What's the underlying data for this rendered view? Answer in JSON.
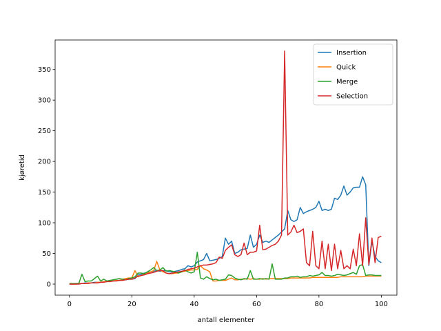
{
  "chart_data": {
    "type": "line",
    "title": "",
    "xlabel": "antall elementer",
    "ylabel": "kjøretid",
    "xlim": [
      -4.6,
      105
    ],
    "ylim": [
      -18,
      398
    ],
    "xticks": [
      0,
      20,
      40,
      60,
      80,
      100
    ],
    "yticks": [
      0,
      50,
      100,
      150,
      200,
      250,
      300,
      350
    ],
    "grid": false,
    "legend_position": "top-right",
    "x": [
      0,
      1,
      2,
      3,
      4,
      5,
      6,
      7,
      8,
      9,
      10,
      11,
      12,
      13,
      14,
      15,
      16,
      17,
      18,
      19,
      20,
      21,
      22,
      23,
      24,
      25,
      26,
      27,
      28,
      29,
      30,
      31,
      32,
      33,
      34,
      35,
      36,
      37,
      38,
      39,
      40,
      41,
      42,
      43,
      44,
      45,
      46,
      47,
      48,
      49,
      50,
      51,
      52,
      53,
      54,
      55,
      56,
      57,
      58,
      59,
      60,
      61,
      62,
      63,
      64,
      65,
      66,
      67,
      68,
      69,
      70,
      71,
      72,
      73,
      74,
      75,
      76,
      77,
      78,
      79,
      80,
      81,
      82,
      83,
      84,
      85,
      86,
      87,
      88,
      89,
      90,
      91,
      92,
      93,
      94,
      95,
      96,
      97,
      98,
      99,
      100
    ],
    "series": [
      {
        "name": "Insertion",
        "color": "#1f77b4",
        "values": [
          0,
          0,
          1,
          1,
          1,
          2,
          2,
          2,
          3,
          3,
          3,
          4,
          4,
          5,
          5,
          6,
          6,
          7,
          7,
          8,
          8,
          9,
          15,
          16,
          18,
          19,
          20,
          21,
          22,
          21,
          22,
          22,
          20,
          20,
          21,
          22,
          24,
          25,
          30,
          28,
          30,
          36,
          38,
          40,
          50,
          38,
          39,
          40,
          42,
          45,
          75,
          65,
          70,
          50,
          52,
          56,
          57,
          58,
          80,
          60,
          65,
          80,
          68,
          70,
          68,
          72,
          76,
          80,
          85,
          90,
          120,
          105,
          102,
          105,
          125,
          115,
          118,
          120,
          122,
          125,
          135,
          120,
          122,
          120,
          122,
          140,
          138,
          145,
          160,
          145,
          150,
          157,
          158,
          158,
          175,
          162,
          30,
          70,
          45,
          38,
          35
        ]
      },
      {
        "name": "Quick",
        "color": "#ff7f0e",
        "values": [
          0,
          0,
          0,
          1,
          1,
          1,
          2,
          2,
          2,
          3,
          3,
          4,
          4,
          5,
          5,
          6,
          6,
          8,
          9,
          10,
          10,
          22,
          12,
          14,
          16,
          18,
          20,
          22,
          37,
          23,
          20,
          18,
          17,
          17,
          18,
          18,
          20,
          21,
          22,
          23,
          23,
          24,
          30,
          25,
          23,
          20,
          5,
          5,
          6,
          6,
          6,
          8,
          10,
          7,
          7,
          8,
          8,
          9,
          8,
          9,
          8,
          8,
          9,
          8,
          9,
          9,
          9,
          9,
          9,
          9,
          9,
          10,
          10,
          10,
          10,
          10,
          10,
          10,
          11,
          11,
          11,
          11,
          11,
          11,
          11,
          11,
          11,
          12,
          12,
          12,
          12,
          12,
          12,
          12,
          12,
          13,
          13,
          13,
          13,
          13,
          13
        ]
      },
      {
        "name": "Merge",
        "color": "#2ca02c",
        "values": [
          1,
          1,
          1,
          1,
          16,
          4,
          5,
          5,
          9,
          13,
          5,
          8,
          5,
          6,
          7,
          8,
          9,
          8,
          7,
          9,
          10,
          12,
          18,
          18,
          17,
          20,
          23,
          27,
          22,
          23,
          27,
          21,
          22,
          21,
          20,
          18,
          20,
          23,
          20,
          18,
          20,
          52,
          10,
          8,
          12,
          9,
          7,
          8,
          6,
          7,
          8,
          15,
          14,
          10,
          8,
          7,
          9,
          8,
          22,
          8,
          8,
          9,
          8,
          9,
          8,
          33,
          8,
          8,
          8,
          10,
          10,
          12,
          12,
          13,
          11,
          12,
          12,
          14,
          13,
          14,
          15,
          19,
          14,
          14,
          13,
          14,
          16,
          15,
          14,
          15,
          17,
          19,
          16,
          30,
          32,
          14,
          15,
          15,
          14,
          14,
          14
        ]
      },
      {
        "name": "Selection",
        "color": "#d62728",
        "values": [
          0,
          0,
          0,
          0,
          1,
          1,
          1,
          2,
          2,
          2,
          3,
          3,
          4,
          4,
          5,
          5,
          6,
          6,
          7,
          8,
          8,
          10,
          13,
          14,
          15,
          17,
          18,
          19,
          21,
          22,
          22,
          18,
          17,
          18,
          19,
          20,
          21,
          22,
          24,
          25,
          26,
          28,
          30,
          31,
          31,
          32,
          33,
          35,
          44,
          42,
          55,
          60,
          64,
          48,
          45,
          48,
          67,
          48,
          52,
          52,
          54,
          96,
          56,
          57,
          60,
          63,
          65,
          70,
          80,
          380,
          80,
          85,
          96,
          84,
          86,
          90,
          35,
          30,
          86,
          30,
          25,
          70,
          25,
          65,
          22,
          65,
          25,
          55,
          25,
          30,
          25,
          57,
          30,
          82,
          30,
          108,
          32,
          75,
          35,
          76,
          78
        ]
      }
    ]
  }
}
